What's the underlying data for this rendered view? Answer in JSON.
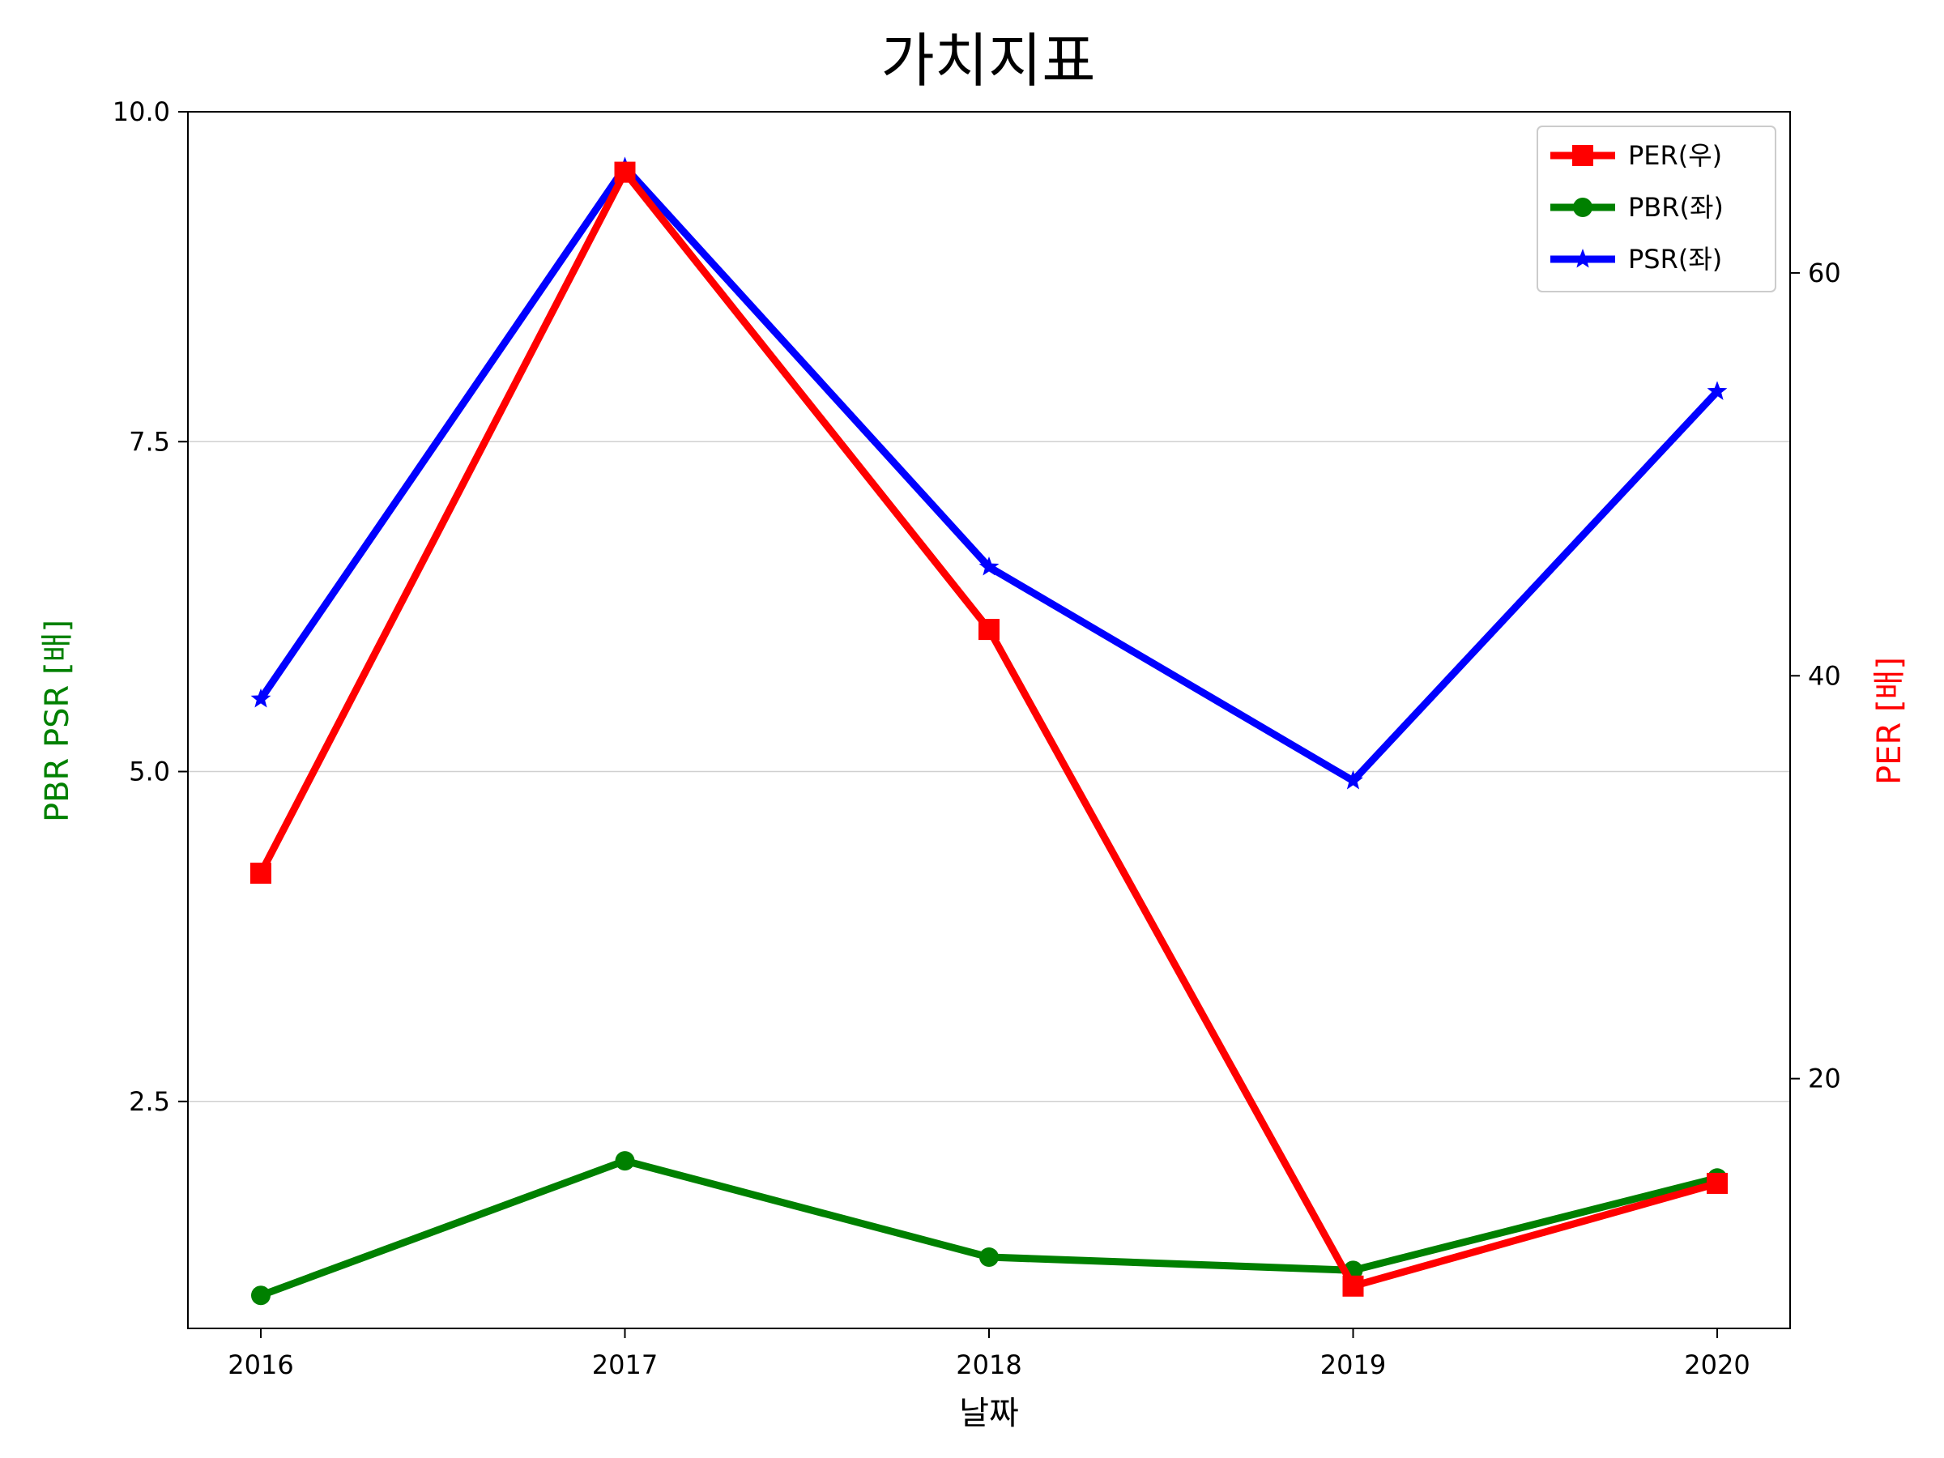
{
  "chart_data": {
    "type": "line",
    "title": "가치지표",
    "xlabel": "날짜",
    "ylabel_left": "PBR PSR [배]",
    "ylabel_right": "PER [배]",
    "categories": [
      "2016",
      "2017",
      "2018",
      "2019",
      "2020"
    ],
    "left_axis": {
      "ylim": [
        0.78,
        10.0
      ],
      "ticks": [
        "2.5",
        "5.0",
        "7.5",
        "10.0"
      ],
      "tick_values": [
        2.5,
        5.0,
        7.5,
        10.0
      ],
      "color": "#008000"
    },
    "right_axis": {
      "ylim": [
        7.6,
        68.0
      ],
      "ticks": [
        "20",
        "40",
        "60"
      ],
      "tick_values": [
        20,
        40,
        60
      ],
      "color": "#ff0000"
    },
    "grid": "horizontal",
    "legend_position": "top-right",
    "series": [
      {
        "name": "PER(우)",
        "axis": "right",
        "color": "#ff0000",
        "marker": "square",
        "values": [
          30.2,
          65.0,
          42.3,
          9.7,
          14.8
        ]
      },
      {
        "name": "PBR(좌)",
        "axis": "left",
        "color": "#008000",
        "marker": "circle",
        "values": [
          1.03,
          2.05,
          1.32,
          1.22,
          1.92
        ]
      },
      {
        "name": "PSR(좌)",
        "axis": "left",
        "color": "#0000ff",
        "marker": "star",
        "values": [
          5.55,
          9.58,
          6.55,
          4.93,
          7.88
        ]
      }
    ]
  }
}
